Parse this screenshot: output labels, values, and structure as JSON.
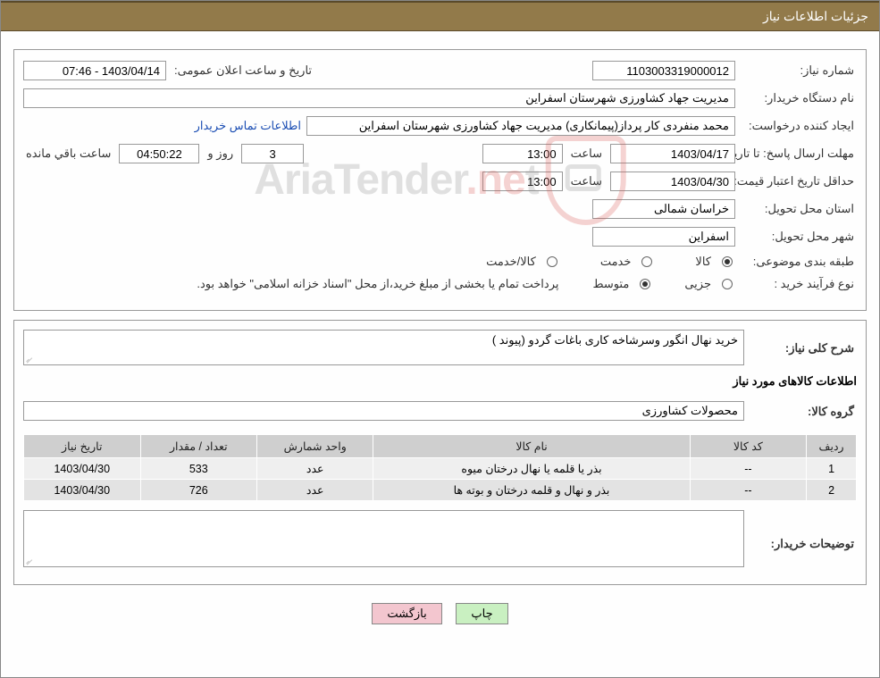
{
  "header": {
    "title": "جزئیات اطلاعات نیاز"
  },
  "colors": {
    "header_bg": "#927a4a",
    "header_text": "#ffffff",
    "border": "#999999",
    "link": "#1a4db3",
    "table_header_bg": "#cfcfcf",
    "table_row_bg": "#efefef",
    "table_row_alt_bg": "#e3e3e3",
    "btn_print_bg": "#c9f0c1",
    "btn_back_bg": "#f3c6cf",
    "watermark_red": "#d9534f",
    "watermark_gray": "#888888"
  },
  "labels": {
    "need_no": "شماره نیاز:",
    "announce_datetime": "تاریخ و ساعت اعلان عمومی:",
    "buyer_org": "نام دستگاه خریدار:",
    "requester": "ایجاد کننده درخواست:",
    "buyer_contact": "اطلاعات تماس خریدار",
    "deadline_to_date": "مهلت ارسال پاسخ: تا تاریخ:",
    "hour": "ساعت",
    "days_and": "روز و",
    "remaining": "ساعت باقي مانده",
    "min_validity_to_date": "حداقل تاریخ اعتبار قیمت: تا تاریخ:",
    "delivery_province": "استان محل تحویل:",
    "delivery_city": "شهر محل تحویل:",
    "subject_class": "طبقه بندی موضوعی:",
    "goods": "کالا",
    "service": "خدمت",
    "goods_service": "کالا/خدمت",
    "purchase_type": "نوع فرآیند خرید :",
    "minor": "جزیی",
    "medium": "متوسط",
    "payment_note": "پرداخت تمام یا بخشی از مبلغ خرید،از محل \"اسناد خزانه اسلامی\" خواهد بود.",
    "general_desc": "شرح کلی نیاز:",
    "items_info": "اطلاعات کالاهای مورد نیاز",
    "goods_group": "گروه کالا:",
    "buyer_notes": "توضیحات خریدار:"
  },
  "values": {
    "need_no": "1103003319000012",
    "announce_datetime": "1403/04/14 - 07:46",
    "buyer_org": "مدیریت جهاد کشاورزی شهرستان اسفراین",
    "requester": "محمد  منفردی کار پرداز(پیمانکاری) مدیریت جهاد کشاورزی شهرستان اسفراین",
    "deadline_date": "1403/04/17",
    "deadline_time": "13:00",
    "remaining_days": "3",
    "remaining_time": "04:50:22",
    "validity_date": "1403/04/30",
    "validity_time": "13:00",
    "province": "خراسان شمالی",
    "city": "اسفراین",
    "general_desc": "خرید نهال انگور وسرشاخه کاری باغات گردو (پیوند )",
    "goods_group": "محصولات کشاورزی",
    "buyer_notes": ""
  },
  "radios": {
    "subject": "goods",
    "purchase": "medium"
  },
  "table": {
    "columns": [
      "ردیف",
      "کد کالا",
      "نام کالا",
      "واحد شمارش",
      "تعداد / مقدار",
      "تاریخ نیاز"
    ],
    "col_widths": [
      "6%",
      "14%",
      "38%",
      "14%",
      "14%",
      "14%"
    ],
    "rows": [
      [
        "1",
        "--",
        "بذر یا قلمه یا نهال درختان میوه",
        "عدد",
        "533",
        "1403/04/30"
      ],
      [
        "2",
        "--",
        "بذر و نهال و قلمه درختان و بوته ها",
        "عدد",
        "726",
        "1403/04/30"
      ]
    ]
  },
  "buttons": {
    "print": "چاپ",
    "back": "بازگشت"
  },
  "watermark": {
    "text_gray1": "AriaTender",
    "text_red": ".ne",
    "text_gray2": "t"
  }
}
